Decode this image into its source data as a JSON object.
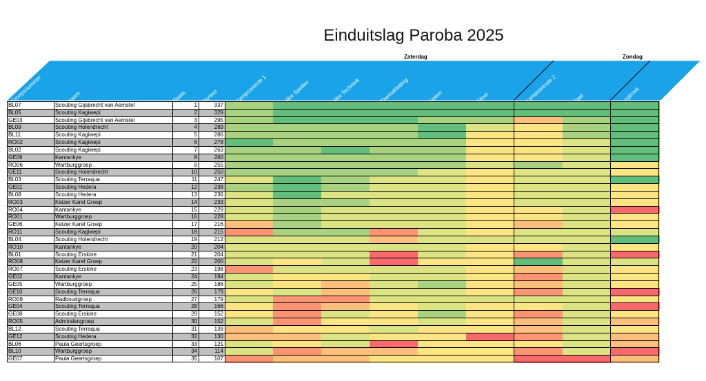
{
  "title": "Einduitslag Paroba 2025",
  "day_headers": {
    "saturday": "Zaterdag",
    "sunday": "Zondag"
  },
  "columns": {
    "groepsnummer": "Groepsnummer",
    "naam": "Naam",
    "plaats": "Plaats",
    "punten": "Punten",
    "scores": [
      "Kampcontrole 1",
      "Hike Spellen",
      "Hike Techniek",
      "Themakleding",
      "Koken",
      "Sfeer",
      "Kampcontrole 2",
      "Spel",
      "Logboek"
    ]
  },
  "colors": {
    "header_blue": "#1aa3e8",
    "row_gray": "#c0c0c0",
    "G": "#63be7b",
    "L": "#a8d27f",
    "Y": "#dbe382",
    "W": "#fee583",
    "O": "#fdbf7b",
    "R": "#f8696b",
    "P": "#fa9473"
  },
  "rows": [
    {
      "id": "BL07",
      "name": "Scouting Gijsbrecht van Aemstel",
      "place": "1",
      "points": "337",
      "scores": "LGGGGGGGG"
    },
    {
      "id": "BL05",
      "name": "Scouting Kagiwepi",
      "place": "2",
      "points": "329",
      "scores": "LGGGGGGGG"
    },
    {
      "id": "GE03",
      "name": "Scouting Gijsbrecht van Aemstel",
      "place": "3",
      "points": "295",
      "scores": "LGGGLLOLG"
    },
    {
      "id": "BL09",
      "name": "Scouting Holendrecht",
      "place": "4",
      "points": "289",
      "scores": "LLLLGYWLG"
    },
    {
      "id": "BL11",
      "name": "Scouting Kagiwepi",
      "place": "5",
      "points": "286",
      "scores": "LLLLGWWLG"
    },
    {
      "id": "RO02",
      "name": "Scouting Kagiwepi",
      "place": "6",
      "points": "278",
      "scores": "GLLLLWWYG"
    },
    {
      "id": "BL02",
      "name": "Scouting Kagiwepi",
      "place": "7",
      "points": "263",
      "scores": "LLGLLWWYG"
    },
    {
      "id": "GE09",
      "name": "Kantankye",
      "place": "8",
      "points": "260",
      "scores": "LLLLLWWYG"
    },
    {
      "id": "RO06",
      "name": "Wartburggroep",
      "place": "9",
      "points": "255",
      "scores": "LLLLLYLYW"
    },
    {
      "id": "GE11",
      "name": "Scouting Holendrecht",
      "place": "10",
      "points": "250",
      "scores": "LLLLYWYYW"
    },
    {
      "id": "BL03",
      "name": "Scouting Terraqua",
      "place": "11",
      "points": "247",
      "scores": "YGLYYWYYG"
    },
    {
      "id": "GE01",
      "name": "Scouting Hedera",
      "place": "12",
      "points": "238",
      "scores": "LGLYYWYYW"
    },
    {
      "id": "BL08",
      "name": "Scouting Hedera",
      "place": "13",
      "points": "236",
      "scores": "YGYYYWYYW"
    },
    {
      "id": "RO03",
      "name": "Keizer Karel Groep",
      "place": "14",
      "points": "233",
      "scores": "YLLYYWYYW"
    },
    {
      "id": "RO04",
      "name": "Kantankye",
      "place": "15",
      "points": "229",
      "scores": "YLYYYWWYR"
    },
    {
      "id": "RO01",
      "name": "Wartburggroep",
      "place": "16",
      "points": "228",
      "scores": "YLYYYWWYW"
    },
    {
      "id": "GE06",
      "name": "Keizer Karel Groep",
      "place": "17",
      "points": "216",
      "scores": "OLYYYWOYW"
    },
    {
      "id": "RO11",
      "name": "Scouting Kagiwepi",
      "place": "18",
      "points": "215",
      "scores": "PLLPYWYYY"
    },
    {
      "id": "BL04",
      "name": "Scouting Holendrecht",
      "place": "19",
      "points": "212",
      "scores": "YYYOYYYYG"
    },
    {
      "id": "RO10",
      "name": "Kantankye",
      "place": "20",
      "points": "204",
      "scores": "YYYYYWWYW"
    },
    {
      "id": "BL01",
      "name": "Scouting Erskine",
      "place": "21",
      "points": "204",
      "scores": "YYYRYWPYR"
    },
    {
      "id": "RO08",
      "name": "Keizer Karel Groep",
      "place": "22",
      "points": "200",
      "scores": "YWYRWWGYY"
    },
    {
      "id": "RO07",
      "name": "Scouting Erskine",
      "place": "23",
      "points": "198",
      "scores": "PYYYYWOYW"
    },
    {
      "id": "GE02",
      "name": "Kantankye",
      "place": "24",
      "points": "194",
      "scores": "YWWYYWPYW"
    },
    {
      "id": "GE05",
      "name": "Wartburggroep",
      "place": "25",
      "points": "186",
      "scores": "YWOYLWOYW"
    },
    {
      "id": "GE10",
      "name": "Scouting Terraqua",
      "place": "26",
      "points": "179",
      "scores": "WYOYYWPYR"
    },
    {
      "id": "RO09",
      "name": "Radboudgroep",
      "place": "27",
      "points": "179",
      "scores": "YPPYYYYYW"
    },
    {
      "id": "GE04",
      "name": "Scouting Terraqua",
      "place": "28",
      "points": "166",
      "scores": "WPOWYWWYR"
    },
    {
      "id": "GE08",
      "name": "Scouting Erskine",
      "place": "29",
      "points": "152",
      "scores": "WPYWLWPYW"
    },
    {
      "id": "RO05",
      "name": "Admiralengroep",
      "place": "30",
      "points": "152",
      "scores": "YPWWYWOYO"
    },
    {
      "id": "BL12",
      "name": "Scouting Terraqua",
      "place": "31",
      "points": "139",
      "scores": "OWWYWWOYW"
    },
    {
      "id": "GE12",
      "name": "Scouting Hedera",
      "place": "32",
      "points": "130",
      "scores": "OOYWWRPYO"
    },
    {
      "id": "BL06",
      "name": "Paula Geertsgroep",
      "place": "33",
      "points": "121",
      "scores": "YWYRWWWYO"
    },
    {
      "id": "BL10",
      "name": "Wartburggroep",
      "place": "34",
      "points": "114",
      "scores": "YPOOWWPYR"
    },
    {
      "id": "GE07",
      "name": "Paula Geertsgroep",
      "place": "35",
      "points": "107",
      "scores": "POOWWWRRO"
    }
  ]
}
